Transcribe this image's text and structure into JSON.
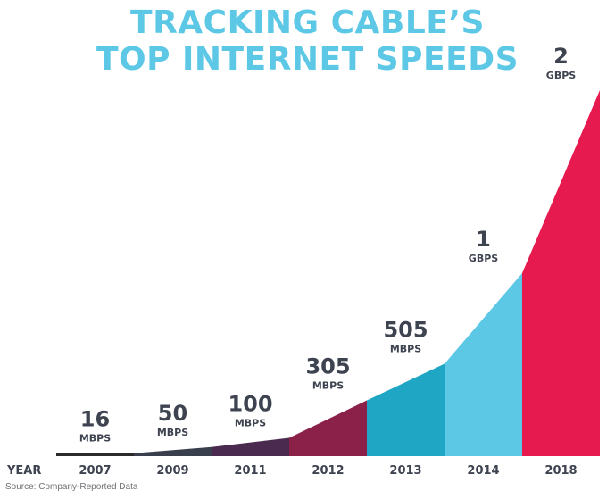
{
  "title_lines": [
    "TRACKING CABLE’S",
    "TOP INTERNET SPEEDS"
  ],
  "source": "Source: Company-Reported Data",
  "colors": {
    "title": "#5cc8e6",
    "labels": "#3e4350",
    "segments": [
      "#2b2b2b",
      "#3a3f4d",
      "#4a2a4f",
      "#8b2148",
      "#1fa6c4",
      "#5cc8e6",
      "#e61a4f"
    ]
  },
  "chart_data": {
    "type": "area",
    "x_label": "YEAR",
    "categories": [
      "2007",
      "2009",
      "2011",
      "2012",
      "2013",
      "2014",
      "2018"
    ],
    "values_mbps": [
      16,
      50,
      100,
      305,
      505,
      1000,
      2000
    ],
    "value_labels": [
      {
        "value": "16",
        "unit": "MBPS"
      },
      {
        "value": "50",
        "unit": "MBPS"
      },
      {
        "value": "100",
        "unit": "MBPS"
      },
      {
        "value": "305",
        "unit": "MBPS"
      },
      {
        "value": "505",
        "unit": "MBPS"
      },
      {
        "value": "1",
        "unit": "GBPS"
      },
      {
        "value": "2",
        "unit": "GBPS"
      }
    ]
  }
}
